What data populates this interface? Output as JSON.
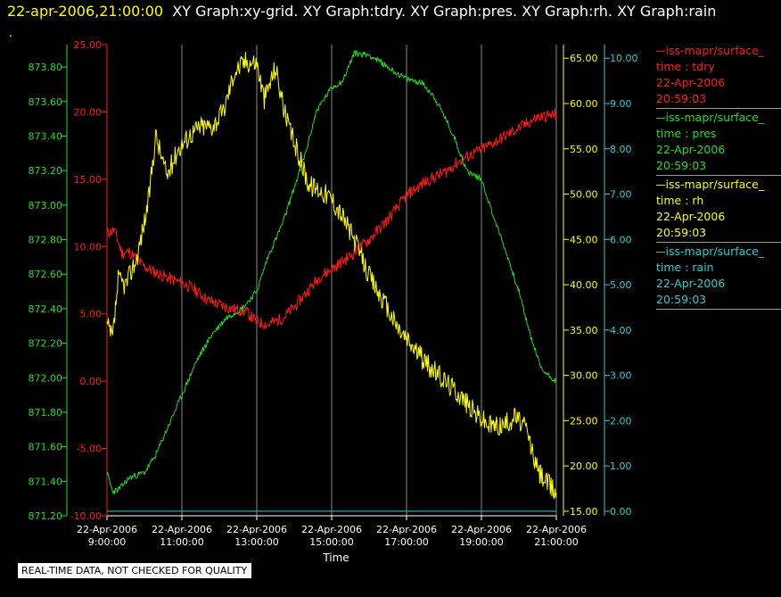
{
  "header": {
    "timestamp": "22-apr-2006,21:00:00",
    "titles": "XY Graph:xy-grid.  XY Graph:tdry.  XY Graph:pres.  XY Graph:rh.  XY Graph:rain",
    "dot": "."
  },
  "legend": [
    {
      "name": "—iss-mapr/surface_",
      "field": "time : tdry",
      "date": "22-Apr-2006",
      "time": "20:59:03",
      "color": "#ff1a1a"
    },
    {
      "name": "—iss-mapr/surface_",
      "field": "time : pres",
      "date": "22-Apr-2006",
      "time": "20:59:03",
      "color": "#22dd22"
    },
    {
      "name": "—iss-mapr/surface_",
      "field": "time : rh",
      "date": "22-Apr-2006",
      "time": "20:59:03",
      "color": "#ffff00"
    },
    {
      "name": "—iss-mapr/surface_",
      "field": "time : rain",
      "date": "22-Apr-2006",
      "time": "20:59:03",
      "color": "#33cccc"
    }
  ],
  "disclaimer": "REAL-TIME DATA, NOT CHECKED FOR QUALITY",
  "chart_data": {
    "type": "line",
    "xlabel": "Time",
    "x_ticks": [
      {
        "date": "22-Apr-2006",
        "time": "9:00:00",
        "hour": 9
      },
      {
        "date": "22-Apr-2006",
        "time": "11:00:00",
        "hour": 11
      },
      {
        "date": "22-Apr-2006",
        "time": "13:00:00",
        "hour": 13
      },
      {
        "date": "22-Apr-2006",
        "time": "15:00:00",
        "hour": 15
      },
      {
        "date": "22-Apr-2006",
        "time": "17:00:00",
        "hour": 17
      },
      {
        "date": "22-Apr-2006",
        "time": "19:00:00",
        "hour": 19
      },
      {
        "date": "22-Apr-2006",
        "time": "21:00:00",
        "hour": 21
      }
    ],
    "xlim": [
      9,
      21
    ],
    "grid": "vertical",
    "axes": {
      "pres": {
        "color": "#22dd22",
        "ylim": [
          871.2,
          873.93
        ],
        "ticks": [
          "871.20",
          "871.40",
          "871.60",
          "871.80",
          "872.00",
          "872.20",
          "872.40",
          "872.60",
          "872.80",
          "873.00",
          "873.20",
          "873.40",
          "873.60",
          "873.80"
        ]
      },
      "tdry": {
        "color": "#ff1a1a",
        "ylim": [
          -10,
          25
        ],
        "ticks": [
          "-10.00",
          "-5.00",
          "0.00",
          "5.00",
          "10.00",
          "15.00",
          "20.00",
          "25.00"
        ]
      },
      "rh": {
        "color": "#ffff00",
        "ylim": [
          14.5,
          66.5
        ],
        "ticks": [
          "15.00",
          "20.00",
          "25.00",
          "30.00",
          "35.00",
          "40.00",
          "45.00",
          "50.00",
          "55.00",
          "60.00",
          "65.00"
        ]
      },
      "rain": {
        "color": "#33cccc",
        "ylim": [
          -0.1,
          10.3
        ],
        "ticks": [
          "0.00",
          "1.00",
          "2.00",
          "3.00",
          "4.00",
          "5.00",
          "6.00",
          "7.00",
          "8.00",
          "9.00",
          "10.00"
        ]
      }
    },
    "series": [
      {
        "name": "tdry",
        "axis": "tdry",
        "color": "#ff1a1a",
        "x": [
          9.0,
          9.2,
          9.4,
          9.6,
          10.0,
          10.5,
          11.0,
          11.3,
          11.7,
          12.0,
          12.3,
          12.7,
          13.0,
          13.3,
          13.7,
          14.0,
          14.3,
          14.7,
          15.0,
          15.5,
          16.0,
          16.5,
          17.0,
          17.5,
          18.0,
          18.5,
          19.0,
          19.5,
          20.0,
          20.5,
          21.0
        ],
        "y": [
          11.0,
          11.2,
          9.5,
          9.6,
          8.5,
          7.8,
          7.3,
          6.9,
          6.0,
          5.7,
          5.4,
          5.2,
          4.4,
          4.2,
          4.7,
          5.5,
          6.5,
          7.8,
          8.3,
          9.3,
          10.5,
          12.0,
          13.8,
          14.8,
          15.5,
          16.5,
          17.2,
          18.0,
          18.8,
          19.6,
          19.8
        ]
      },
      {
        "name": "pres",
        "axis": "pres",
        "color": "#22dd22",
        "x": [
          9.0,
          9.15,
          9.3,
          9.6,
          10.0,
          10.3,
          10.6,
          11.0,
          11.4,
          11.8,
          12.2,
          12.6,
          13.0,
          13.3,
          13.7,
          14.0,
          14.3,
          14.6,
          15.0,
          15.3,
          15.6,
          16.0,
          16.3,
          16.7,
          17.0,
          17.4,
          17.7,
          18.0,
          18.3,
          18.6,
          19.0,
          19.3,
          19.7,
          20.0,
          20.3,
          20.6,
          21.0
        ],
        "y": [
          871.45,
          871.34,
          871.35,
          871.42,
          871.45,
          871.55,
          871.7,
          871.9,
          872.1,
          872.25,
          872.35,
          872.4,
          872.5,
          872.7,
          872.9,
          873.1,
          873.3,
          873.55,
          873.68,
          873.72,
          873.88,
          873.87,
          873.83,
          873.77,
          873.73,
          873.71,
          873.64,
          873.52,
          873.38,
          873.2,
          873.15,
          872.95,
          872.7,
          872.5,
          872.25,
          872.05,
          871.98
        ]
      },
      {
        "name": "rh",
        "axis": "rh",
        "color": "#ffff00",
        "x": [
          9.0,
          9.15,
          9.3,
          9.5,
          9.8,
          10.1,
          10.3,
          10.6,
          10.9,
          11.2,
          11.5,
          11.8,
          12.1,
          12.4,
          12.7,
          13.0,
          13.2,
          13.5,
          13.8,
          14.1,
          14.4,
          14.7,
          15.0,
          15.3,
          15.6,
          16.0,
          16.4,
          16.8,
          17.2,
          17.6,
          18.0,
          18.4,
          18.8,
          19.2,
          19.6,
          19.9,
          20.2,
          20.5,
          20.7,
          21.0
        ],
        "y": [
          35.5,
          34.0,
          40.5,
          40.0,
          43.0,
          49.0,
          56.5,
          52.0,
          55.0,
          56.5,
          57.5,
          57.5,
          59.0,
          63.5,
          64.7,
          64.5,
          60.5,
          64.0,
          58.0,
          54.5,
          51.0,
          50.5,
          49.5,
          47.5,
          45.0,
          41.0,
          38.0,
          35.0,
          33.0,
          31.0,
          29.5,
          28.0,
          26.0,
          24.5,
          24.5,
          25.5,
          24.0,
          19.5,
          18.5,
          17.0
        ]
      },
      {
        "name": "rain",
        "axis": "rain",
        "color": "#33cccc",
        "x": [
          9.0,
          21.0
        ],
        "y": [
          0.0,
          0.0
        ]
      }
    ]
  }
}
